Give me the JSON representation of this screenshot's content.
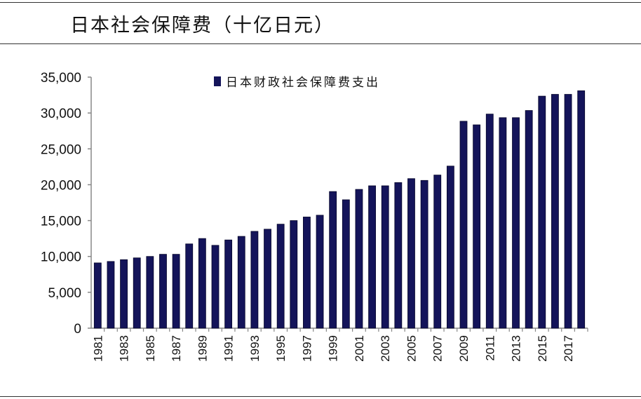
{
  "title": "日本社会保障费（十亿日元）",
  "chart_data": {
    "type": "bar",
    "title": "日本社会保障费（十亿日元）",
    "xlabel": "",
    "ylabel": "",
    "ylim": [
      0,
      35000
    ],
    "yticks": [
      0,
      5000,
      10000,
      15000,
      20000,
      25000,
      30000,
      35000
    ],
    "ytick_labels": [
      "0",
      "5,000",
      "10,000",
      "15,000",
      "20,000",
      "25,000",
      "30,000",
      "35,000"
    ],
    "grid": false,
    "legend_position": "top",
    "bar_color": "#14145a",
    "categories": [
      "1981",
      "1982",
      "1983",
      "1984",
      "1985",
      "1986",
      "1987",
      "1988",
      "1989",
      "1990",
      "1991",
      "1992",
      "1993",
      "1994",
      "1995",
      "1996",
      "1997",
      "1998",
      "1999",
      "2000",
      "2001",
      "2002",
      "2003",
      "2004",
      "2005",
      "2006",
      "2007",
      "2008",
      "2009",
      "2010",
      "2011",
      "2012",
      "2013",
      "2014",
      "2015",
      "2016",
      "2017",
      "2018"
    ],
    "xtick_labels": [
      "1981",
      "1983",
      "1985",
      "1987",
      "1989",
      "1991",
      "1993",
      "1995",
      "1997",
      "1999",
      "2001",
      "2003",
      "2005",
      "2007",
      "2009",
      "2011",
      "2013",
      "2015",
      "2017"
    ],
    "series": [
      {
        "name": "日本财政社会保障费支出",
        "values": [
          9100,
          9300,
          9550,
          9800,
          10000,
          10300,
          10300,
          11750,
          12500,
          11550,
          12300,
          12800,
          13500,
          13800,
          14500,
          15000,
          15500,
          15750,
          19050,
          17900,
          19350,
          19850,
          19850,
          20300,
          20850,
          20600,
          21350,
          22600,
          28850,
          28350,
          29850,
          29350,
          29350,
          30350,
          32350,
          32600,
          32600,
          33100
        ]
      }
    ]
  }
}
